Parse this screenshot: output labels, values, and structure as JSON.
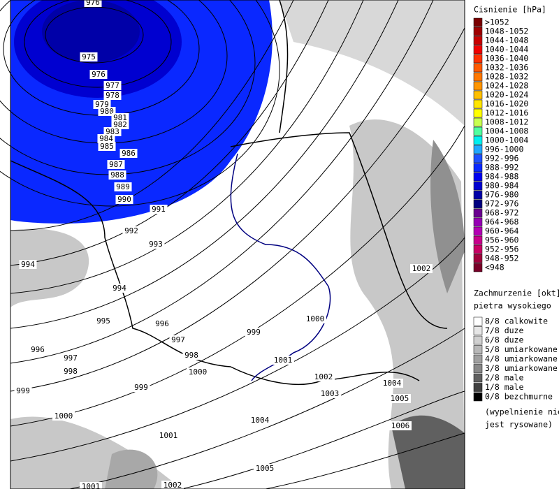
{
  "legend": {
    "pressure_title": "Cisnienie [hPa]",
    "pressure": [
      {
        "label": ">1052",
        "color": "#7a0000"
      },
      {
        "label": "1048-1052",
        "color": "#a00000"
      },
      {
        "label": "1044-1048",
        "color": "#c80000"
      },
      {
        "label": "1040-1044",
        "color": "#f00000"
      },
      {
        "label": "1036-1040",
        "color": "#ff3000"
      },
      {
        "label": "1032-1036",
        "color": "#ff5a00"
      },
      {
        "label": "1028-1032",
        "color": "#ff7800"
      },
      {
        "label": "1024-1028",
        "color": "#ff9600"
      },
      {
        "label": "1020-1024",
        "color": "#ffc000"
      },
      {
        "label": "1016-1020",
        "color": "#ffe600"
      },
      {
        "label": "1012-1016",
        "color": "#ffff00"
      },
      {
        "label": "1008-1012",
        "color": "#c8ff50"
      },
      {
        "label": "1004-1008",
        "color": "#50ffa0"
      },
      {
        "label": "1000-1004",
        "color": "#00f0f0"
      },
      {
        "label": "996-1000",
        "color": "#20a8ff"
      },
      {
        "label": "992-996",
        "color": "#1e50ff"
      },
      {
        "label": "988-992",
        "color": "#0a28ff"
      },
      {
        "label": "984-988",
        "color": "#0000f0"
      },
      {
        "label": "980-984",
        "color": "#0000d0"
      },
      {
        "label": "976-980",
        "color": "#0000a8"
      },
      {
        "label": "972-976",
        "color": "#000080"
      },
      {
        "label": "968-972",
        "color": "#6a0090"
      },
      {
        "label": "964-968",
        "color": "#9600b4"
      },
      {
        "label": "960-964",
        "color": "#b400b4"
      },
      {
        "label": "956-960",
        "color": "#c8008c"
      },
      {
        "label": "952-956",
        "color": "#c80064"
      },
      {
        "label": "948-952",
        "color": "#a0003c"
      },
      {
        "label": "<948",
        "color": "#780028"
      }
    ],
    "cloud_title": [
      "Zachmurzenie [okt]",
      "pietra wysokiego"
    ],
    "cloud": [
      {
        "label": "8/8 calkowite",
        "color": "#ffffff"
      },
      {
        "label": "7/8 duze",
        "color": "#e6e6e6"
      },
      {
        "label": "6/8 duze",
        "color": "#d0d0d0"
      },
      {
        "label": "5/8 umiarkowane",
        "color": "#b8b8b8"
      },
      {
        "label": "4/8 umiarkowane",
        "color": "#a0a0a0"
      },
      {
        "label": "3/8 umiarkowane",
        "color": "#888888"
      },
      {
        "label": "2/8 male",
        "color": "#606060"
      },
      {
        "label": "1/8 male",
        "color": "#404040"
      },
      {
        "label": "0/8 bezchmurne",
        "color": "#000000"
      }
    ],
    "cloud_note": [
      "(wypelnienie nie",
      "jest rysowane)"
    ]
  },
  "isobar_labels": [
    976,
    975,
    976,
    977,
    978,
    979,
    980,
    981,
    982,
    983,
    984,
    985,
    986,
    987,
    988,
    989,
    990,
    991,
    992,
    993,
    994,
    994,
    995,
    996,
    996,
    997,
    997,
    998,
    998,
    999,
    999,
    999,
    1000,
    1000,
    1000,
    1001,
    1001,
    1002,
    1002,
    1003,
    1004,
    1004,
    1005,
    1005,
    1006,
    1001,
    1002
  ]
}
